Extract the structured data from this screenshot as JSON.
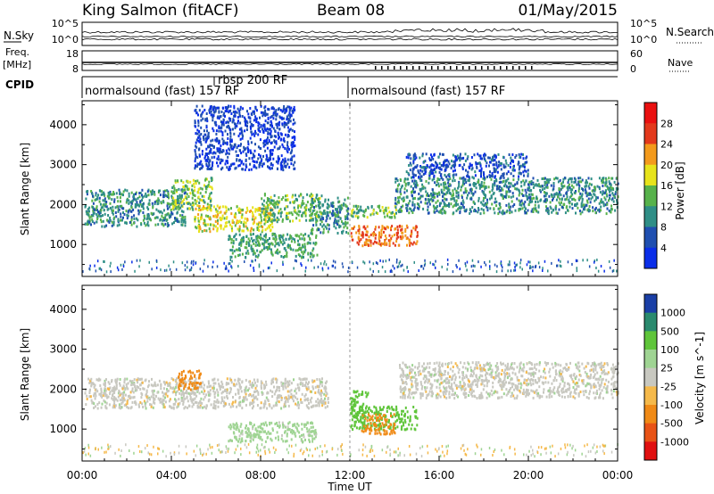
{
  "header": {
    "station": "King Salmon (fitACF)",
    "beam": "Beam 08",
    "date": "01/May/2015"
  },
  "chart_data": [
    {
      "type": "line",
      "name": "noise",
      "left_label": "N.Sky",
      "right_label": "N.Search",
      "left_ticks": [
        "10^5",
        "10^0"
      ],
      "right_ticks": [
        "10^5",
        "10^0"
      ]
    },
    {
      "type": "line",
      "name": "frequency",
      "left_label_lines": [
        "Freq.",
        "[MHz]"
      ],
      "right_label": "Nave",
      "left_ticks": [
        "18",
        "8"
      ],
      "right_ticks": [
        "60",
        "0"
      ]
    },
    {
      "type": "table",
      "name": "cpid",
      "label": "CPID",
      "programs": [
        {
          "start": "00:00",
          "text": "normalsound (fast) 157 RF"
        },
        {
          "start": "05:50",
          "text": "rbsp 200 RF"
        },
        {
          "start": "12:00",
          "text": "normalsound (fast) 157 RF"
        }
      ]
    },
    {
      "type": "heatmap",
      "name": "power",
      "ylabel": "Slant Range [km]",
      "ylim": [
        200,
        4600
      ],
      "yticks": [
        1000,
        2000,
        3000,
        4000
      ],
      "colorbar": {
        "label": "Power [dB]",
        "ticks": [
          4,
          8,
          12,
          16,
          20,
          24,
          28
        ],
        "colors": [
          "#0a2ee8",
          "#1f4fb0",
          "#2f8e86",
          "#57b24b",
          "#e7e31b",
          "#f39a1c",
          "#e3391c",
          "#ea1010"
        ]
      },
      "bands": [
        {
          "t0": 0.1,
          "t1": 4.6,
          "r0": 1480,
          "r1": 2400,
          "level": 10
        },
        {
          "t0": 4.0,
          "t1": 5.8,
          "r0": 1900,
          "r1": 2700,
          "level": 14
        },
        {
          "t0": 5.0,
          "t1": 8.5,
          "r0": 1350,
          "r1": 2000,
          "level": 18
        },
        {
          "t0": 8.0,
          "t1": 10.7,
          "r0": 1600,
          "r1": 2300,
          "level": 14
        },
        {
          "t0": 5.0,
          "t1": 9.5,
          "r0": 2900,
          "r1": 4500,
          "level": 4
        },
        {
          "t0": 6.5,
          "t1": 10.5,
          "r0": 700,
          "r1": 1300,
          "level": 12
        },
        {
          "t0": 10.2,
          "t1": 11.9,
          "r0": 1300,
          "r1": 2200,
          "level": 10
        },
        {
          "t0": 12.0,
          "t1": 15.0,
          "r0": 1000,
          "r1": 1500,
          "level": 24
        },
        {
          "t0": 12.0,
          "t1": 14.2,
          "r0": 1700,
          "r1": 2000,
          "level": 14
        },
        {
          "t0": 14.0,
          "t1": 24.0,
          "r0": 1800,
          "r1": 2700,
          "level": 10
        },
        {
          "t0": 14.5,
          "t1": 20.0,
          "r0": 2700,
          "r1": 3300,
          "level": 5
        }
      ]
    },
    {
      "type": "heatmap",
      "name": "velocity",
      "ylabel": "Slant Range [km]",
      "ylim": [
        200,
        4600
      ],
      "yticks": [
        1000,
        2000,
        3000,
        4000
      ],
      "xlabel": "Time UT",
      "xlim": [
        0,
        24
      ],
      "xticks": [
        "00:00",
        "04:00",
        "08:00",
        "12:00",
        "16:00",
        "20:00",
        "00:00"
      ],
      "colorbar": {
        "label": "Velocity [m s^-1]",
        "ticks": [
          "1000",
          "500",
          "100",
          "25",
          "-25",
          "-100",
          "-500",
          "-1000"
        ],
        "colors": [
          "#1a3fa6",
          "#2a8a6e",
          "#5fc53a",
          "#9fd493",
          "#c8c8c0",
          "#f5b94a",
          "#f08a16",
          "#e85316",
          "#e01010"
        ]
      },
      "bands": [
        {
          "t0": 0.1,
          "t1": 11.0,
          "r0": 1550,
          "r1": 2300,
          "v": 0
        },
        {
          "t0": 4.2,
          "t1": 5.3,
          "r0": 2000,
          "r1": 2500,
          "v": -300
        },
        {
          "t0": 6.5,
          "t1": 10.5,
          "r0": 700,
          "r1": 1200,
          "v": 50
        },
        {
          "t0": 12.0,
          "t1": 12.8,
          "r0": 1300,
          "r1": 2000,
          "v": 300
        },
        {
          "t0": 12.0,
          "t1": 15.0,
          "r0": 1000,
          "r1": 1600,
          "v": 150
        },
        {
          "t0": 12.5,
          "t1": 14.0,
          "r0": 900,
          "r1": 1400,
          "v": -200
        },
        {
          "t0": 14.2,
          "t1": 24.0,
          "r0": 1800,
          "r1": 2700,
          "v": 0
        }
      ]
    }
  ]
}
